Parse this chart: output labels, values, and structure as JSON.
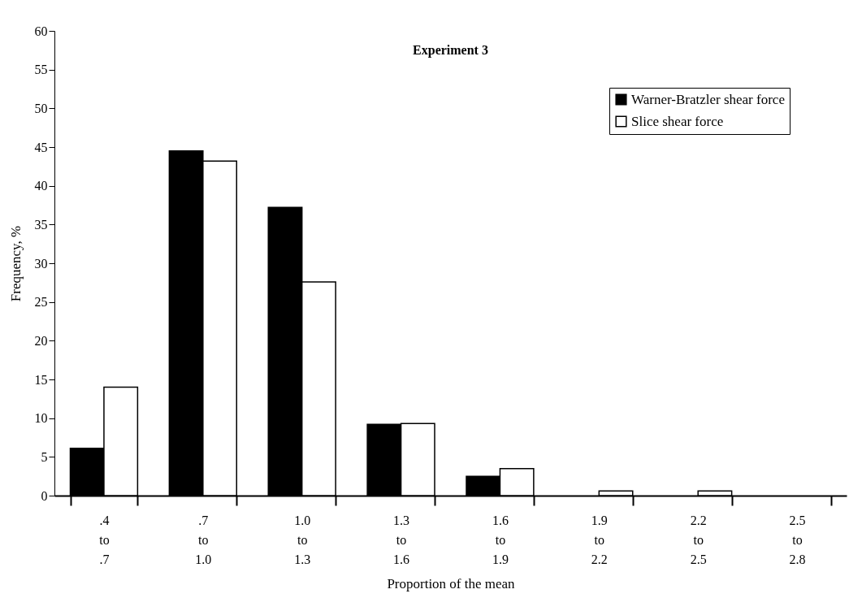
{
  "chart_data": {
    "type": "bar",
    "title": "Experiment 3",
    "xlabel": "Proportion of the mean",
    "ylabel": "Frequency, %",
    "categories": [
      ".4 to .7",
      ".7 to 1.0",
      "1.0 to 1.3",
      "1.3 to 1.6",
      "1.6 to 1.9",
      "1.9 to 2.2",
      "2.2 to 2.5",
      "2.5 to 2.8"
    ],
    "series": [
      {
        "name": "Warner-Bratzler shear force",
        "color": "#000000",
        "values": [
          6.1,
          44.5,
          37.2,
          9.2,
          2.5,
          null,
          null,
          null
        ]
      },
      {
        "name": "Slice shear force",
        "color": "#ffffff",
        "values": [
          14,
          43.2,
          27.6,
          9.3,
          3.5,
          0.6,
          0.6,
          null
        ]
      }
    ],
    "ylim": [
      0,
      60
    ],
    "yticks": [
      0,
      5,
      10,
      15,
      20,
      25,
      30,
      35,
      40,
      45,
      50,
      55,
      60
    ],
    "grid": false,
    "legend": "top right"
  }
}
